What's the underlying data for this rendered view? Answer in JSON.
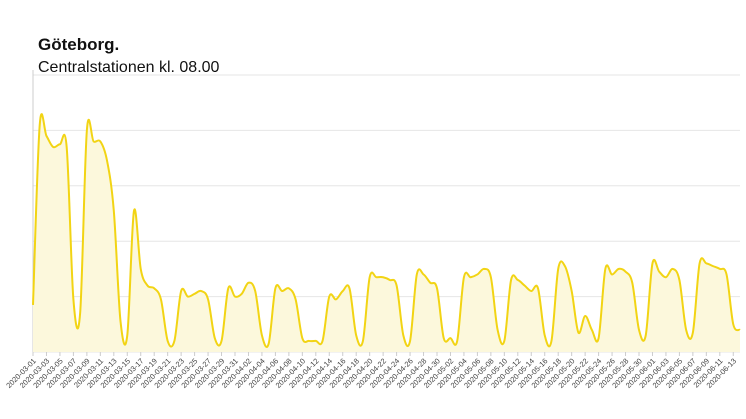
{
  "chart_data": {
    "type": "line",
    "title": "Göteborg.",
    "subtitle": "Centralstationen kl. 08.00",
    "categories": [
      "2020-03-01",
      null,
      "2020-03-03",
      null,
      "2020-03-05",
      null,
      "2020-03-07",
      null,
      "2020-03-09",
      null,
      "2020-03-11",
      null,
      "2020-03-13",
      null,
      "2020-03-15",
      null,
      "2020-03-17",
      null,
      "2020-03-19",
      null,
      "2020-03-21",
      null,
      "2020-03-23",
      null,
      "2020-03-25",
      null,
      "2020-03-27",
      null,
      "2020-03-29",
      null,
      "2020-03-31",
      null,
      "2020-04-02",
      null,
      "2020-04-04",
      null,
      "2020-04-06",
      null,
      "2020-04-08",
      null,
      "2020-04-10",
      null,
      "2020-04-12",
      null,
      "2020-04-14",
      null,
      "2020-04-16",
      null,
      "2020-04-18",
      null,
      "2020-04-20",
      null,
      "2020-04-22",
      null,
      "2020-04-24",
      null,
      "2020-04-26",
      null,
      "2020-04-28",
      null,
      "2020-04-30",
      null,
      "2020-05-02",
      null,
      "2020-05-04",
      null,
      "2020-05-06",
      null,
      "2020-05-08",
      null,
      "2020-05-10",
      null,
      "2020-05-12",
      null,
      "2020-05-14",
      null,
      "2020-05-16",
      null,
      "2020-05-18",
      null,
      "2020-05-20",
      null,
      "2020-05-22",
      null,
      "2020-05-24",
      null,
      "2020-05-26",
      null,
      "2020-05-28",
      null,
      "2020-05-30",
      null,
      "2020-06-01",
      null,
      "2020-06-03",
      null,
      "2020-06-05",
      null,
      "2020-06-07",
      null,
      "2020-06-09",
      null,
      "2020-06-11",
      null,
      "2020-06-13",
      null
    ],
    "series": [
      {
        "color": "#f2d414",
        "fill": "#fcf8dc",
        "values": [
          0.85,
          4.1,
          3.9,
          3.7,
          3.75,
          3.7,
          0.95,
          0.7,
          4.0,
          3.8,
          3.8,
          3.45,
          2.55,
          0.55,
          0.3,
          2.55,
          1.5,
          1.2,
          1.15,
          0.95,
          0.2,
          0.2,
          1.1,
          1.0,
          1.05,
          1.1,
          0.95,
          0.25,
          0.2,
          1.15,
          1.0,
          1.05,
          1.25,
          1.1,
          0.3,
          0.15,
          1.15,
          1.1,
          1.15,
          0.95,
          0.25,
          0.2,
          0.2,
          0.2,
          1.0,
          0.95,
          1.1,
          1.15,
          0.3,
          0.2,
          1.35,
          1.35,
          1.35,
          1.3,
          1.2,
          0.3,
          0.2,
          1.4,
          1.4,
          1.25,
          1.15,
          0.25,
          0.25,
          0.2,
          1.35,
          1.35,
          1.4,
          1.5,
          1.35,
          0.4,
          0.2,
          1.3,
          1.3,
          1.2,
          1.1,
          1.15,
          0.3,
          0.2,
          1.5,
          1.55,
          1.1,
          0.35,
          0.65,
          0.4,
          0.25,
          1.5,
          1.4,
          1.5,
          1.45,
          1.25,
          0.4,
          0.3,
          1.6,
          1.45,
          1.35,
          1.5,
          1.3,
          0.4,
          0.35,
          1.6,
          1.6,
          1.55,
          1.5,
          1.4,
          0.5,
          0.4
        ]
      }
    ],
    "ylim": [
      0,
      5
    ],
    "yticks": [
      0,
      1,
      2,
      3,
      4,
      5
    ],
    "grid": true
  }
}
